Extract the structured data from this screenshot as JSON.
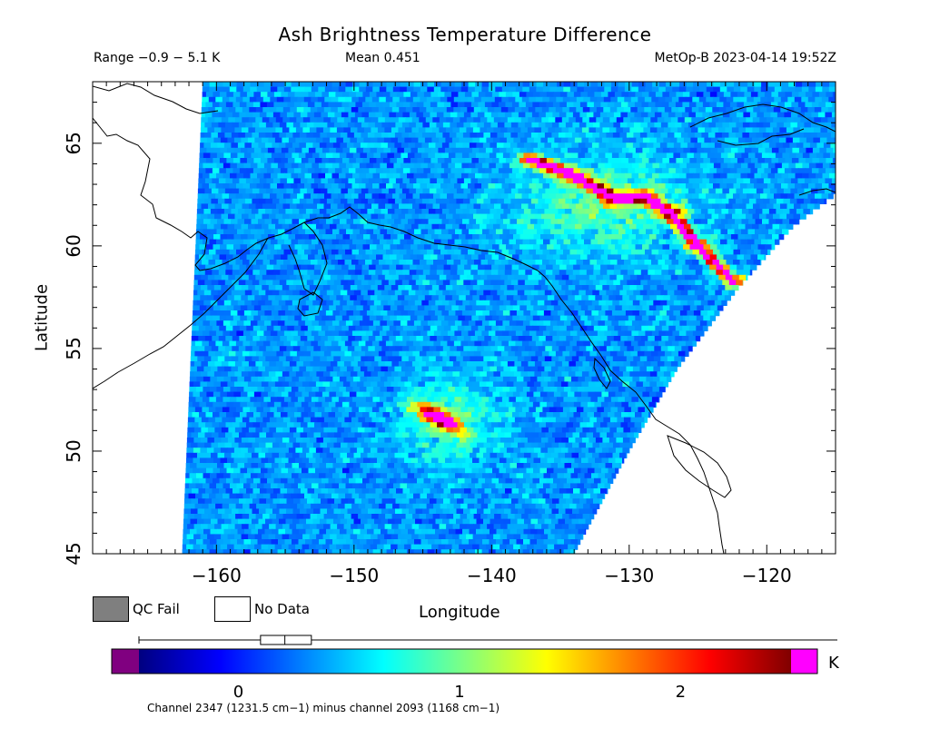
{
  "header": {
    "title": "Ash Brightness Temperature Difference",
    "range_text": "Range −0.9 − 5.1 K",
    "mean_text": "Mean 0.451",
    "satellite_text": "MetOp-B 2023-04-14 19:52Z"
  },
  "legend": {
    "qc_fail_label": "QC Fail",
    "no_data_label": "No Data",
    "qc_fail_color": "#7f7f7f",
    "no_data_color": "#ffffff"
  },
  "colorbar": {
    "unit": "K",
    "ticks": [
      "0",
      "1",
      "2"
    ],
    "tick_values": [
      0,
      1,
      2
    ],
    "min": -0.45,
    "max": 2.5,
    "underflow_color": "#800080",
    "overflow_color": "#ff00ff",
    "stops": [
      "#000080",
      "#0000ff",
      "#0080ff",
      "#00ffff",
      "#80ff80",
      "#ffff00",
      "#ff8000",
      "#ff0000",
      "#800000"
    ],
    "boxplot": {
      "whisker_low": -0.45,
      "q1": 0.1,
      "median": 0.21,
      "q3": 0.33,
      "whisker_high": 2.5
    }
  },
  "footer": {
    "channel_text": "Channel 2347 (1231.5 cm−1) minus channel 2093 (1168 cm−1)"
  },
  "chart_data": {
    "type": "heatmap",
    "title": "Ash Brightness Temperature Difference",
    "xlabel": "Longitude",
    "ylabel": "Latitude",
    "xlim": [
      -169,
      -115
    ],
    "ylim": [
      45,
      68
    ],
    "xticks": [
      "−160",
      "−150",
      "−140",
      "−130",
      "−120"
    ],
    "xtick_values": [
      -160,
      -150,
      -140,
      -130,
      -120
    ],
    "yticks": [
      "45",
      "50",
      "55",
      "60",
      "65"
    ],
    "ytick_values": [
      45,
      50,
      55,
      60,
      65
    ],
    "range": [
      -0.9,
      5.1
    ],
    "mean": 0.451,
    "units": "K",
    "satellite": "MetOp-B",
    "datetime": "2023-04-14 19:52Z",
    "swath": {
      "west_edge": [
        [
          -162.5,
          45
        ],
        [
          -161,
          68
        ]
      ],
      "east_edge": [
        [
          -134,
          45
        ],
        [
          -130,
          50
        ],
        [
          -126.5,
          54
        ],
        [
          -122,
          58
        ],
        [
          -118,
          61
        ],
        [
          -115,
          62.5
        ]
      ]
    },
    "background_value": 0.35,
    "features": [
      {
        "name": "ash plume north arc",
        "lon_range": [
          -136,
          -122
        ],
        "lat_range": [
          58,
          65
        ],
        "peak_value": 2.5
      },
      {
        "name": "ash plume south",
        "lon_range": [
          -146,
          -141
        ],
        "lat_range": [
          50.5,
          53
        ],
        "peak_value": 2.5
      }
    ]
  }
}
